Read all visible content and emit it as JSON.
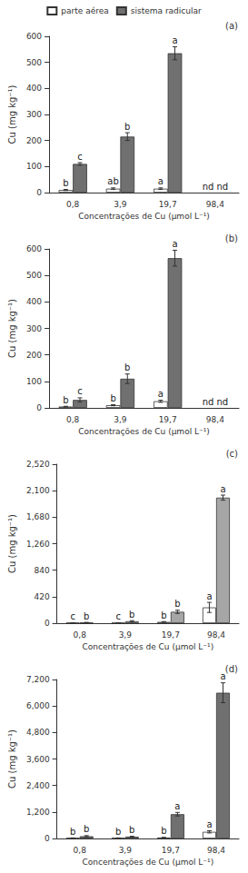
{
  "chart_data": [
    {
      "type": "bar",
      "title": "(a)",
      "x_label": "Concentrações de Cu (µmol L⁻¹)",
      "y_label": "Cu (mg kg⁻¹)",
      "categories": [
        "0,8",
        "3,9",
        "19,7",
        "98,4"
      ],
      "series": [
        {
          "name": "parte aérea",
          "color": "#ffffff",
          "values": [
            10,
            15,
            15,
            null
          ],
          "errors": [
            2,
            3,
            3,
            null
          ],
          "letters": [
            "b",
            "ab",
            "a",
            "nd"
          ]
        },
        {
          "name": "sistema radicular",
          "color": "#707070",
          "values": [
            110,
            215,
            535,
            null
          ],
          "errors": [
            5,
            15,
            25,
            null
          ],
          "letters": [
            "c",
            "b",
            "a",
            "nd"
          ]
        }
      ],
      "ylim": [
        0,
        600
      ],
      "yticks": [
        0,
        100,
        200,
        300,
        400,
        500,
        600
      ],
      "grid": false,
      "legend": "top"
    },
    {
      "type": "bar",
      "title": "(b)",
      "x_label": "Concentrações de Cu (µmol L⁻¹)",
      "y_label": "Cu (mg kg⁻¹)",
      "categories": [
        "0,8",
        "3,9",
        "19,7",
        "98,4"
      ],
      "series": [
        {
          "name": "parte aérea",
          "color": "#ffffff",
          "values": [
            5,
            10,
            25,
            null
          ],
          "errors": [
            1,
            2,
            4,
            null
          ],
          "letters": [
            "b",
            "b",
            "a",
            "nd"
          ]
        },
        {
          "name": "sistema radicular",
          "color": "#707070",
          "values": [
            30,
            110,
            565,
            null
          ],
          "errors": [
            8,
            18,
            30,
            null
          ],
          "letters": [
            "c",
            "b",
            "a",
            "nd"
          ]
        }
      ],
      "ylim": [
        0,
        600
      ],
      "yticks": [
        0,
        100,
        200,
        300,
        400,
        500,
        600
      ],
      "grid": false
    },
    {
      "type": "bar",
      "title": "(c)",
      "x_label": "Concentrações de Cu (µmol L⁻¹)",
      "y_label": "Cu (mg kg⁻¹)",
      "categories": [
        "0,8",
        "3,9",
        "19,7",
        "98,4"
      ],
      "series": [
        {
          "name": "parte aérea",
          "color": "#ffffff",
          "values": [
            5,
            5,
            20,
            250
          ],
          "errors": [
            1,
            1,
            5,
            80
          ],
          "letters": [
            "c",
            "c",
            "b",
            "a"
          ]
        },
        {
          "name": "sistema radicular",
          "color": "#a6a6a6",
          "values": [
            10,
            30,
            180,
            1990
          ],
          "errors": [
            3,
            10,
            25,
            40
          ],
          "letters": [
            "b",
            "b",
            "b",
            "a"
          ]
        }
      ],
      "ylim": [
        0,
        2520
      ],
      "yticks": [
        0,
        420,
        840,
        1260,
        1680,
        2100,
        2520
      ],
      "grid": false
    },
    {
      "type": "bar",
      "title": "(d)",
      "x_label": "Concentrações de Cu (µmol L⁻¹)",
      "y_label": "Cu (mg kg⁻¹)",
      "categories": [
        "0,8",
        "3,9",
        "19,7",
        "98,4"
      ],
      "series": [
        {
          "name": "parte aérea",
          "color": "#ffffff",
          "values": [
            20,
            20,
            40,
            300
          ],
          "errors": [
            5,
            5,
            10,
            50
          ],
          "letters": [
            "b",
            "b",
            "b",
            "a"
          ]
        },
        {
          "name": "sistema radicular",
          "color": "#707070",
          "values": [
            100,
            80,
            1100,
            6600
          ],
          "errors": [
            30,
            20,
            80,
            450
          ],
          "letters": [
            "b",
            "b",
            "a",
            "a"
          ]
        }
      ],
      "ylim": [
        0,
        7200
      ],
      "yticks": [
        0,
        1200,
        2400,
        3600,
        4800,
        6000,
        7200
      ],
      "grid": false
    }
  ]
}
